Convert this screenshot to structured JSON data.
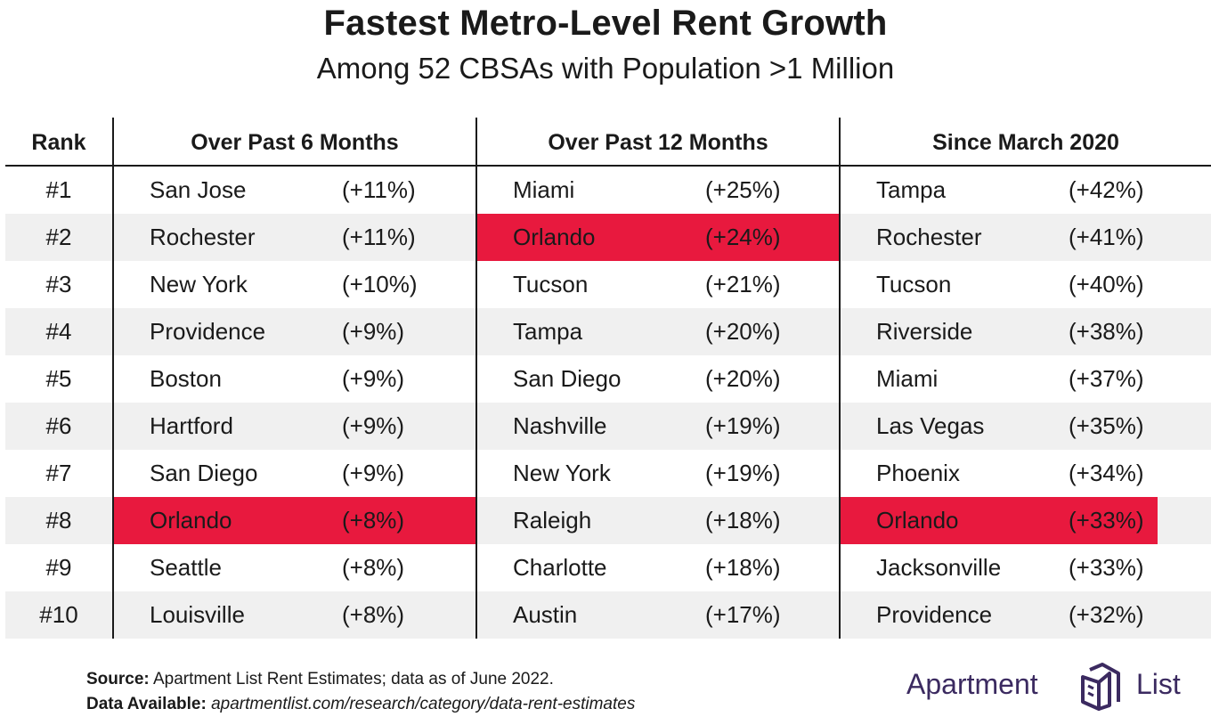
{
  "chart_data": {
    "type": "table",
    "title": "Fastest Metro-Level Rent Growth",
    "subtitle": "Among 52 CBSAs with Population >1 Million",
    "columns": [
      "Rank",
      "Over Past 6 Months",
      "Over Past 12 Months",
      "Since March 2020"
    ],
    "highlight_color": "#e8193e",
    "highlight_city": "Orlando",
    "rows": [
      {
        "rank": "#1",
        "m6": {
          "city": "San Jose",
          "pct": "(+11%)"
        },
        "m12": {
          "city": "Miami",
          "pct": "(+25%)"
        },
        "since": {
          "city": "Tampa",
          "pct": "(+42%)"
        }
      },
      {
        "rank": "#2",
        "m6": {
          "city": "Rochester",
          "pct": "(+11%)"
        },
        "m12": {
          "city": "Orlando",
          "pct": "(+24%)"
        },
        "since": {
          "city": "Rochester",
          "pct": "(+41%)"
        }
      },
      {
        "rank": "#3",
        "m6": {
          "city": "New York",
          "pct": "(+10%)"
        },
        "m12": {
          "city": "Tucson",
          "pct": "(+21%)"
        },
        "since": {
          "city": "Tucson",
          "pct": "(+40%)"
        }
      },
      {
        "rank": "#4",
        "m6": {
          "city": "Providence",
          "pct": "(+9%)"
        },
        "m12": {
          "city": "Tampa",
          "pct": "(+20%)"
        },
        "since": {
          "city": "Riverside",
          "pct": "(+38%)"
        }
      },
      {
        "rank": "#5",
        "m6": {
          "city": "Boston",
          "pct": "(+9%)"
        },
        "m12": {
          "city": "San Diego",
          "pct": "(+20%)"
        },
        "since": {
          "city": "Miami",
          "pct": "(+37%)"
        }
      },
      {
        "rank": "#6",
        "m6": {
          "city": "Hartford",
          "pct": "(+9%)"
        },
        "m12": {
          "city": "Nashville",
          "pct": "(+19%)"
        },
        "since": {
          "city": "Las Vegas",
          "pct": "(+35%)"
        }
      },
      {
        "rank": "#7",
        "m6": {
          "city": "San Diego",
          "pct": "(+9%)"
        },
        "m12": {
          "city": "New York",
          "pct": "(+19%)"
        },
        "since": {
          "city": "Phoenix",
          "pct": "(+34%)"
        }
      },
      {
        "rank": "#8",
        "m6": {
          "city": "Orlando",
          "pct": "(+8%)"
        },
        "m12": {
          "city": "Raleigh",
          "pct": "(+18%)"
        },
        "since": {
          "city": "Orlando",
          "pct": "(+33%)"
        }
      },
      {
        "rank": "#9",
        "m6": {
          "city": "Seattle",
          "pct": "(+8%)"
        },
        "m12": {
          "city": "Charlotte",
          "pct": "(+18%)"
        },
        "since": {
          "city": "Jacksonville",
          "pct": "(+33%)"
        }
      },
      {
        "rank": "#10",
        "m6": {
          "city": "Louisville",
          "pct": "(+8%)"
        },
        "m12": {
          "city": "Austin",
          "pct": "(+17%)"
        },
        "since": {
          "city": "Providence",
          "pct": "(+32%)"
        }
      }
    ]
  },
  "footer": {
    "source_label": "Source:",
    "source_text": "Apartment List Rent Estimates; data as of June 2022.",
    "data_label": "Data Available:",
    "data_url": "apartmentlist.com/research/category/data-rent-estimates"
  },
  "logo": {
    "word1": "Apartment",
    "word2": "List",
    "color": "#3b2a60"
  }
}
